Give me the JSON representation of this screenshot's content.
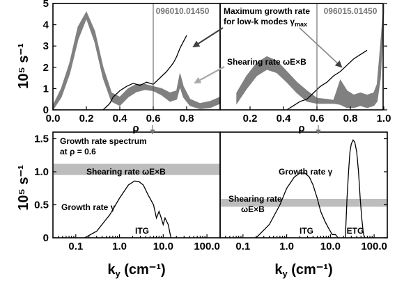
{
  "colors": {
    "band": "#808080",
    "band_light": "#bdbdbd",
    "line": "#000000",
    "arrow_dark": "#404040",
    "arrow_light": "#aaaaaa"
  },
  "chart_data": [
    {
      "type": "area",
      "panel": "top-left",
      "shot_label": "096010.01450",
      "ylabel": "10⁵ s⁻¹",
      "x_axis_label": "ρ",
      "xlim": [
        0,
        1.0
      ],
      "ylim": [
        0,
        5
      ],
      "x_ticks": [
        "0.0",
        "0.2",
        "0.4",
        "0.6",
        "0.8"
      ],
      "y_ticks": [
        "0",
        "1",
        "2",
        "3",
        "4",
        "5"
      ],
      "vertical_marker_x": 0.6,
      "series": [
        {
          "name": "Shearing rate ωE×B",
          "style": "band",
          "x": [
            0.0,
            0.05,
            0.1,
            0.15,
            0.2,
            0.25,
            0.3,
            0.35,
            0.4,
            0.45,
            0.5,
            0.55,
            0.6,
            0.65,
            0.7,
            0.74,
            0.76,
            0.78,
            0.82,
            0.88,
            0.94,
            1.0
          ],
          "lower": [
            0.0,
            0.6,
            1.7,
            3.3,
            4.3,
            3.2,
            1.5,
            0.4,
            0.2,
            0.6,
            0.85,
            0.95,
            0.9,
            0.7,
            0.4,
            0.5,
            1.1,
            0.6,
            0.2,
            0.05,
            0.1,
            0.3
          ],
          "upper": [
            0.2,
            1.0,
            2.2,
            3.9,
            4.6,
            3.7,
            2.0,
            0.8,
            0.6,
            1.0,
            1.2,
            1.2,
            1.1,
            1.0,
            0.8,
            0.9,
            1.7,
            1.1,
            0.5,
            0.3,
            0.4,
            0.6
          ]
        },
        {
          "name": "Maximum growth rate for low-k modes γmax",
          "style": "line",
          "x": [
            0.3,
            0.34,
            0.36,
            0.4,
            0.44,
            0.48,
            0.52,
            0.56,
            0.6,
            0.64,
            0.68,
            0.72,
            0.74,
            0.76,
            0.78,
            0.8
          ],
          "y": [
            0.0,
            0.3,
            0.6,
            0.9,
            1.1,
            1.25,
            1.15,
            1.3,
            1.2,
            1.5,
            1.8,
            2.2,
            2.5,
            2.9,
            3.2,
            3.5
          ]
        }
      ]
    },
    {
      "type": "area",
      "panel": "top-right",
      "shot_label": "096015.01450",
      "x_axis_label": "ρ",
      "xlim": [
        0,
        1.0
      ],
      "ylim": [
        0,
        5
      ],
      "x_ticks": [
        "0.2",
        "0.4",
        "0.6",
        "0.8",
        "1.0"
      ],
      "vertical_marker_x": 0.6,
      "series": [
        {
          "name": "Shearing rate ωE×B",
          "style": "band",
          "x": [
            0.12,
            0.18,
            0.24,
            0.3,
            0.36,
            0.42,
            0.48,
            0.54,
            0.6,
            0.66,
            0.7,
            0.74,
            0.78,
            0.82,
            0.86,
            0.9,
            0.94,
            0.96,
            0.98,
            1.0
          ],
          "lower": [
            0.3,
            1.0,
            1.6,
            1.9,
            1.75,
            1.3,
            0.8,
            0.4,
            0.3,
            0.3,
            0.3,
            0.25,
            0.1,
            0.1,
            0.2,
            0.1,
            0.2,
            0.4,
            1.5,
            4.6
          ],
          "upper": [
            0.8,
            1.6,
            2.2,
            2.5,
            2.3,
            1.8,
            1.3,
            0.9,
            0.55,
            0.5,
            0.45,
            1.4,
            0.9,
            0.7,
            0.8,
            0.7,
            0.8,
            1.2,
            3.0,
            5.0
          ]
        },
        {
          "name": "Maximum growth rate for low-k modes γmax",
          "style": "line",
          "x": [
            0.42,
            0.46,
            0.5,
            0.54,
            0.58,
            0.62,
            0.66,
            0.7,
            0.74,
            0.78,
            0.82,
            0.86,
            0.9
          ],
          "y": [
            0.0,
            0.2,
            0.4,
            0.5,
            0.8,
            1.1,
            1.3,
            1.6,
            1.8,
            2.1,
            2.4,
            2.6,
            2.8
          ]
        }
      ]
    },
    {
      "type": "line",
      "panel": "bottom-left",
      "title": "Growth rate spectrum",
      "subtitle": "at ρ = 0.6",
      "xlabel": "k",
      "xlabel_sub": "y",
      "xlabel_unit": " (cm⁻¹)",
      "ylabel": "10⁵ s⁻¹",
      "xscale": "log",
      "xlim": [
        0.03,
        200
      ],
      "ylim": [
        0,
        1.6
      ],
      "x_ticks": [
        "0.1",
        "1.0",
        "10.0",
        "100.0"
      ],
      "y_ticks": [
        "0",
        "0.5",
        "1.0",
        "1.5"
      ],
      "shear_band": [
        0.95,
        1.12
      ],
      "shear_label": "Shearing rate ωE×B",
      "growth_label": "Growth rate γ",
      "mode_labels": [
        "ITG"
      ],
      "series": [
        {
          "name": "Growth rate γ",
          "x": [
            0.16,
            0.3,
            0.6,
            1.0,
            1.6,
            2.2,
            2.8,
            3.5,
            4.5,
            6.0,
            7.0,
            8.0,
            9.0,
            10.0,
            11.0,
            13.0,
            15.0
          ],
          "y": [
            0.0,
            0.1,
            0.35,
            0.6,
            0.8,
            0.86,
            0.85,
            0.8,
            0.65,
            0.5,
            0.3,
            0.4,
            0.3,
            0.2,
            0.3,
            0.2,
            0.0
          ]
        }
      ]
    },
    {
      "type": "line",
      "panel": "bottom-right",
      "xlabel": "k",
      "xlabel_sub": "y",
      "xlabel_unit": " (cm⁻¹)",
      "xscale": "log",
      "xlim": [
        0.03,
        200
      ],
      "ylim": [
        0,
        1.6
      ],
      "x_ticks": [
        "0.1",
        "1.0",
        "10.0",
        "100.0"
      ],
      "shear_band": [
        0.47,
        0.59
      ],
      "shear_label_line1": "Shearing rate",
      "shear_label_line2": "ωE×B",
      "growth_label": "Growth rate γ",
      "mode_labels": [
        "ITG",
        "ETG"
      ],
      "series": [
        {
          "name": "Growth rate γ (ITG)",
          "x": [
            0.2,
            0.4,
            0.7,
            1.0,
            1.5,
            2.0,
            2.6,
            3.3,
            4.0,
            5.0,
            6.0,
            7.5,
            9.0,
            11.0,
            13.0,
            15.0
          ],
          "y": [
            0.0,
            0.2,
            0.5,
            0.75,
            0.92,
            0.98,
            0.98,
            0.92,
            0.8,
            0.6,
            0.4,
            0.25,
            0.15,
            0.05,
            0.05,
            0.0
          ]
        },
        {
          "name": "Growth rate γ (ETG)",
          "x": [
            22.0,
            24.0,
            26.0,
            28.0,
            30.0,
            33.0,
            36.0,
            40.0,
            44.0,
            48.0,
            52.0,
            56.0,
            60.0
          ],
          "y": [
            0.0,
            0.6,
            1.0,
            1.3,
            1.42,
            1.48,
            1.45,
            1.3,
            1.0,
            0.6,
            0.3,
            0.1,
            0.0
          ]
        }
      ]
    }
  ],
  "annotations": {
    "max_growth_line1": "Maximum growth rate",
    "max_growth_line2": "for low-k modes γ",
    "max_growth_sub": "max",
    "shearing_label": "Shearing rate ωE×B"
  },
  "y_axis_title": "10⁵ s⁻¹"
}
